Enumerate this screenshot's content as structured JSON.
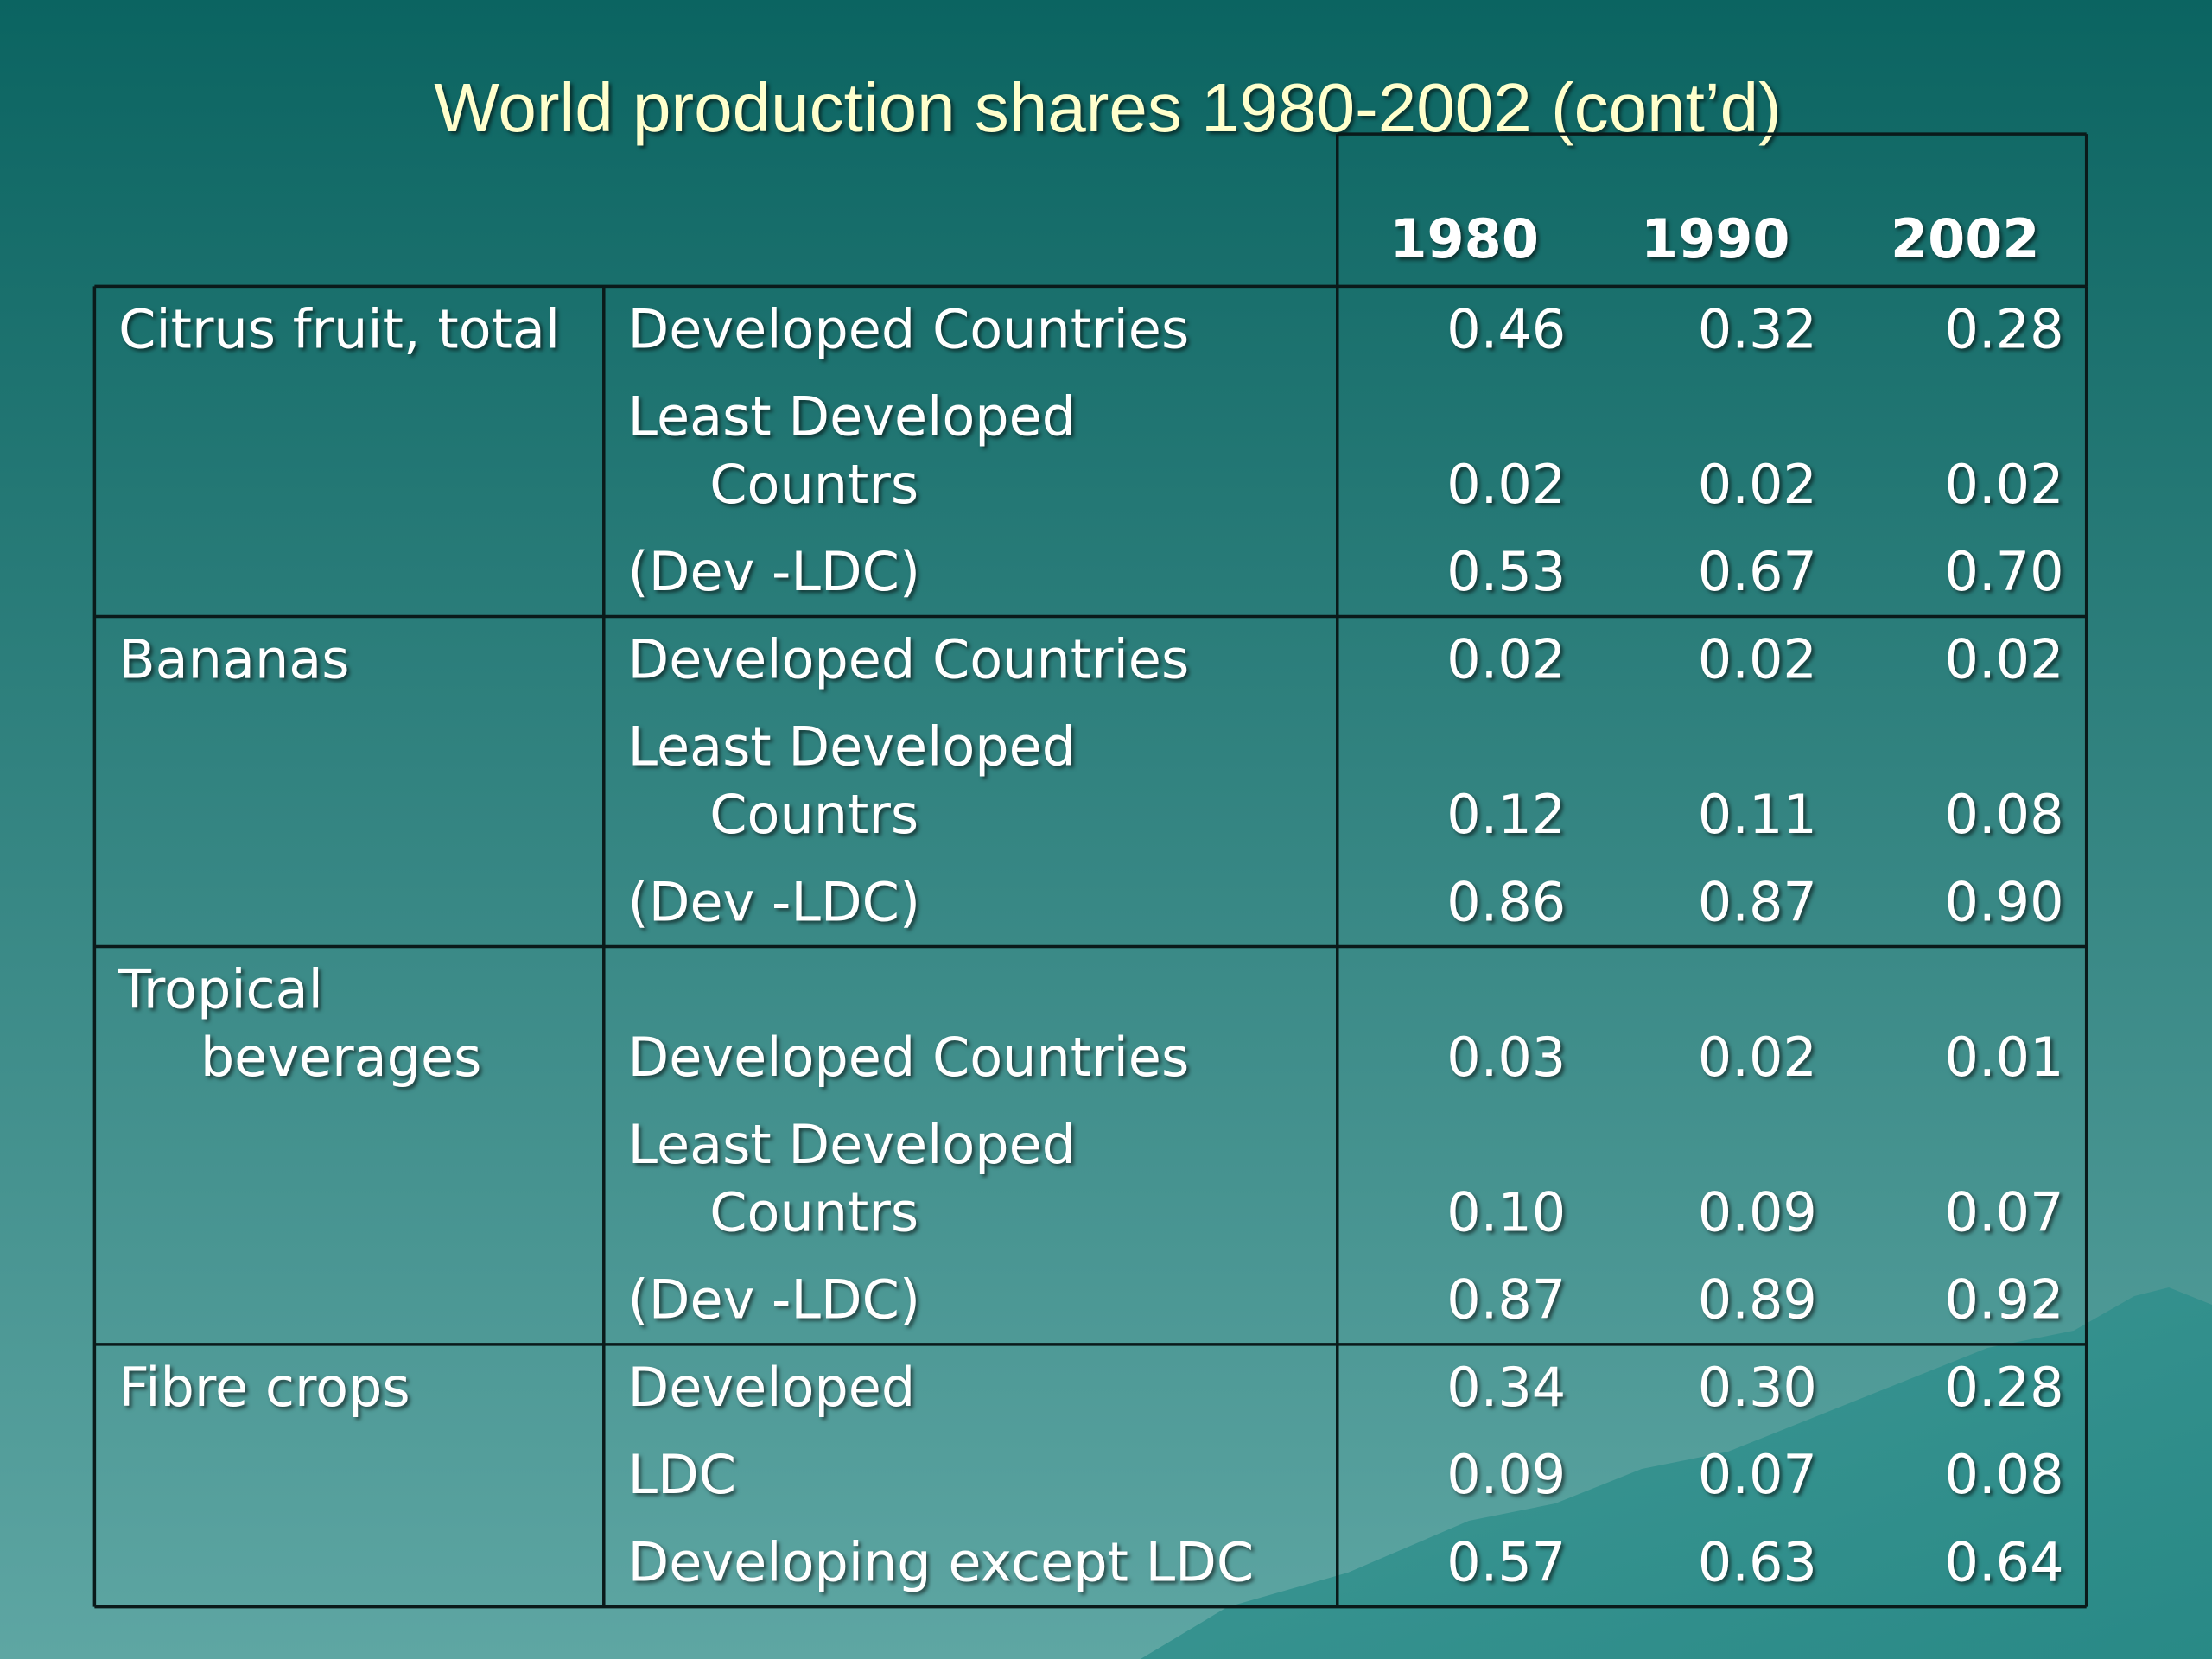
{
  "title": "World production shares 1980-2002 (cont’d)",
  "table": {
    "header": [
      "1980",
      "1990",
      "2002"
    ],
    "groups": [
      {
        "label": [
          "Citrus fruit, total"
        ],
        "rows": [
          {
            "label": [
              "Developed Countries"
            ],
            "values": [
              "0.46",
              "0.32",
              "0.28"
            ]
          },
          {
            "label": [
              "Least Developed",
              "Countrs"
            ],
            "values": [
              "0.02",
              "0.02",
              "0.02"
            ]
          },
          {
            "label": [
              "(Dev -LDC)"
            ],
            "values": [
              "0.53",
              "0.67",
              "0.70"
            ]
          }
        ]
      },
      {
        "label": [
          "Bananas"
        ],
        "rows": [
          {
            "label": [
              "Developed Countries"
            ],
            "values": [
              "0.02",
              "0.02",
              "0.02"
            ]
          },
          {
            "label": [
              "Least Developed",
              "Countrs"
            ],
            "values": [
              "0.12",
              "0.11",
              "0.08"
            ]
          },
          {
            "label": [
              "(Dev -LDC)"
            ],
            "values": [
              "0.86",
              "0.87",
              "0.90"
            ]
          }
        ]
      },
      {
        "label": [
          "Tropical",
          "beverages"
        ],
        "rows": [
          {
            "label": [
              "Developed Countries"
            ],
            "values": [
              "0.03",
              "0.02",
              "0.01"
            ]
          },
          {
            "label": [
              "Least Developed",
              "Countrs"
            ],
            "values": [
              "0.10",
              "0.09",
              "0.07"
            ]
          },
          {
            "label": [
              "(Dev -LDC)"
            ],
            "values": [
              "0.87",
              "0.89",
              "0.92"
            ]
          }
        ]
      },
      {
        "label": [
          "Fibre crops"
        ],
        "rows": [
          {
            "label": [
              "Developed"
            ],
            "values": [
              "0.34",
              "0.30",
              "0.28"
            ]
          },
          {
            "label": [
              "LDC"
            ],
            "values": [
              "0.09",
              "0.07",
              "0.08"
            ]
          },
          {
            "label": [
              "Developing except LDC"
            ],
            "values": [
              "0.57",
              "0.63",
              "0.64"
            ]
          }
        ]
      }
    ]
  }
}
